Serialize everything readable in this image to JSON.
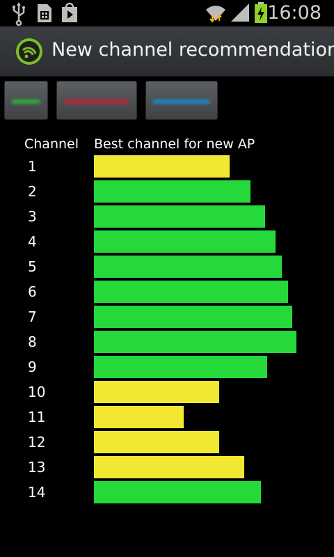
{
  "status_bar": {
    "time": "16:08",
    "icons": [
      "usb-icon",
      "sim-icon",
      "play-store-icon",
      "wifi-icon",
      "signal-icon",
      "battery-charging-icon"
    ]
  },
  "action_bar": {
    "app_icon": "wifi-app-icon",
    "title": "New channel recommendation"
  },
  "filter_buttons": [
    {
      "name": "green",
      "color": "#2fae3c"
    },
    {
      "name": "red",
      "color": "#b8283a"
    },
    {
      "name": "blue",
      "color": "#1f86c9"
    }
  ],
  "colors": {
    "good": "#26d93a",
    "fair": "#f2e832"
  },
  "chart_data": {
    "type": "bar",
    "orientation": "horizontal",
    "title": "",
    "xlabel": "Best channel for new AP",
    "ylabel": "Channel",
    "categories": [
      "1",
      "2",
      "3",
      "4",
      "5",
      "6",
      "7",
      "8",
      "9",
      "10",
      "11",
      "12",
      "13",
      "14"
    ],
    "values": [
      65,
      75,
      82,
      87,
      90,
      93,
      95,
      97,
      83,
      60,
      43,
      60,
      72,
      80
    ],
    "status": [
      "fair",
      "good",
      "good",
      "good",
      "good",
      "good",
      "good",
      "good",
      "good",
      "fair",
      "fair",
      "fair",
      "fair",
      "good"
    ],
    "xlim": [
      0,
      100
    ]
  }
}
